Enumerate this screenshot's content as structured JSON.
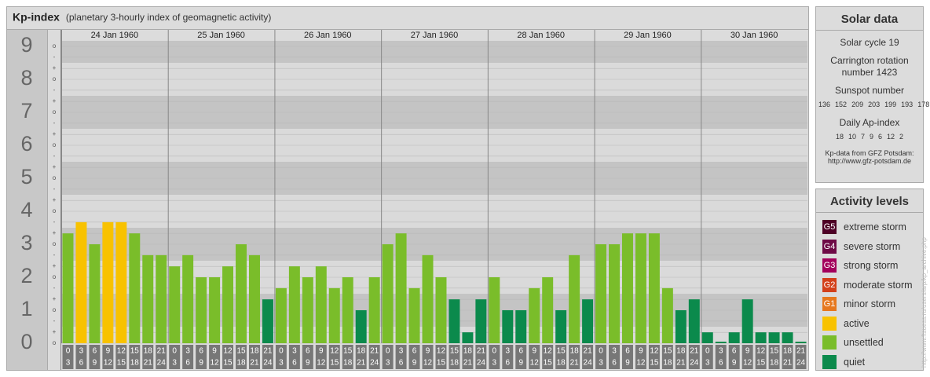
{
  "header": {
    "title": "Kp-index",
    "subtitle": "(planetary 3-hourly index of geomagnetic activity)"
  },
  "chart_data": {
    "type": "bar",
    "ylim": [
      0,
      9
    ],
    "yticks": [
      0,
      1,
      2,
      3,
      4,
      5,
      6,
      7,
      8,
      9
    ],
    "minor_ticks": [
      {
        "value": 0,
        "label": "o"
      },
      {
        "value": 0.33,
        "label": "+"
      },
      {
        "value": 0.67,
        "label": "-"
      }
    ],
    "hours": [
      [
        "0",
        "3"
      ],
      [
        "3",
        "6"
      ],
      [
        "6",
        "9"
      ],
      [
        "9",
        "12"
      ],
      [
        "12",
        "15"
      ],
      [
        "15",
        "18"
      ],
      [
        "18",
        "21"
      ],
      [
        "21",
        "24"
      ]
    ],
    "days": [
      {
        "label": "24 Jan 1960",
        "values": [
          3.33,
          3.67,
          3,
          3.67,
          3.67,
          3.33,
          2.67,
          2.67
        ],
        "colors": [
          "#7abd2a",
          "#f8c200",
          "#7abd2a",
          "#f8c200",
          "#f8c200",
          "#7abd2a",
          "#7abd2a",
          "#7abd2a"
        ]
      },
      {
        "label": "25 Jan 1960",
        "values": [
          2.33,
          2.67,
          2,
          2,
          2.33,
          3,
          2.67,
          1.33
        ],
        "colors": [
          "#7abd2a",
          "#7abd2a",
          "#7abd2a",
          "#7abd2a",
          "#7abd2a",
          "#7abd2a",
          "#7abd2a",
          "#0b8a4c"
        ]
      },
      {
        "label": "26 Jan 1960",
        "values": [
          1.67,
          2.33,
          2,
          2.33,
          1.67,
          2,
          1,
          2
        ],
        "colors": [
          "#7abd2a",
          "#7abd2a",
          "#7abd2a",
          "#7abd2a",
          "#7abd2a",
          "#7abd2a",
          "#0b8a4c",
          "#7abd2a"
        ]
      },
      {
        "label": "27 Jan 1960",
        "values": [
          3,
          3.33,
          1.67,
          2.67,
          2,
          1.33,
          0.33,
          1.33
        ],
        "colors": [
          "#7abd2a",
          "#7abd2a",
          "#7abd2a",
          "#7abd2a",
          "#7abd2a",
          "#0b8a4c",
          "#0b8a4c",
          "#0b8a4c"
        ]
      },
      {
        "label": "28 Jan 1960",
        "values": [
          2,
          1,
          1,
          1.67,
          2,
          1,
          2.67,
          1.33
        ],
        "colors": [
          "#7abd2a",
          "#0b8a4c",
          "#0b8a4c",
          "#7abd2a",
          "#7abd2a",
          "#0b8a4c",
          "#7abd2a",
          "#0b8a4c"
        ]
      },
      {
        "label": "29 Jan 1960",
        "values": [
          3,
          3,
          3.33,
          3.33,
          3.33,
          1.67,
          1,
          1.33
        ],
        "colors": [
          "#7abd2a",
          "#7abd2a",
          "#7abd2a",
          "#7abd2a",
          "#7abd2a",
          "#7abd2a",
          "#0b8a4c",
          "#0b8a4c"
        ]
      },
      {
        "label": "30 Jan 1960",
        "values": [
          0.33,
          0,
          0.33,
          1.33,
          0.33,
          0.33,
          0.33,
          0
        ],
        "colors": [
          "#0b8a4c",
          "#0b8a4c",
          "#0b8a4c",
          "#0b8a4c",
          "#0b8a4c",
          "#0b8a4c",
          "#0b8a4c",
          "#0b8a4c"
        ]
      }
    ]
  },
  "solar": {
    "title": "Solar data",
    "cycle": "Solar cycle 19",
    "carrington": "Carrington rotation number 1423",
    "sunspot_title": "Sunspot number",
    "sunspot": [
      136,
      152,
      209,
      203,
      199,
      193,
      178
    ],
    "ap_title": "Daily Ap-index",
    "ap": [
      18,
      10,
      7,
      9,
      6,
      12,
      2
    ],
    "source": "Kp-data from GFZ Potsdam:",
    "source_url": "http://www.gfz-potsdam.de"
  },
  "legend": {
    "title": "Activity levels",
    "items": [
      {
        "badge": "G5",
        "label": "extreme storm",
        "color": "#4d0025"
      },
      {
        "badge": "G4",
        "label": "severe storm",
        "color": "#6e0a46"
      },
      {
        "badge": "G3",
        "label": "strong storm",
        "color": "#a3005c"
      },
      {
        "badge": "G2",
        "label": "moderate storm",
        "color": "#d3401a"
      },
      {
        "badge": "G1",
        "label": "minor storm",
        "color": "#e6781e"
      },
      {
        "label": "active",
        "color": "#f8c200"
      },
      {
        "label": "unsettled",
        "color": "#7abd2a"
      },
      {
        "label": "quiet",
        "color": "#0b8a4c"
      }
    ]
  },
  "watermark": "http://www.ftsuess.ru/users/arp/kp_archive.php"
}
